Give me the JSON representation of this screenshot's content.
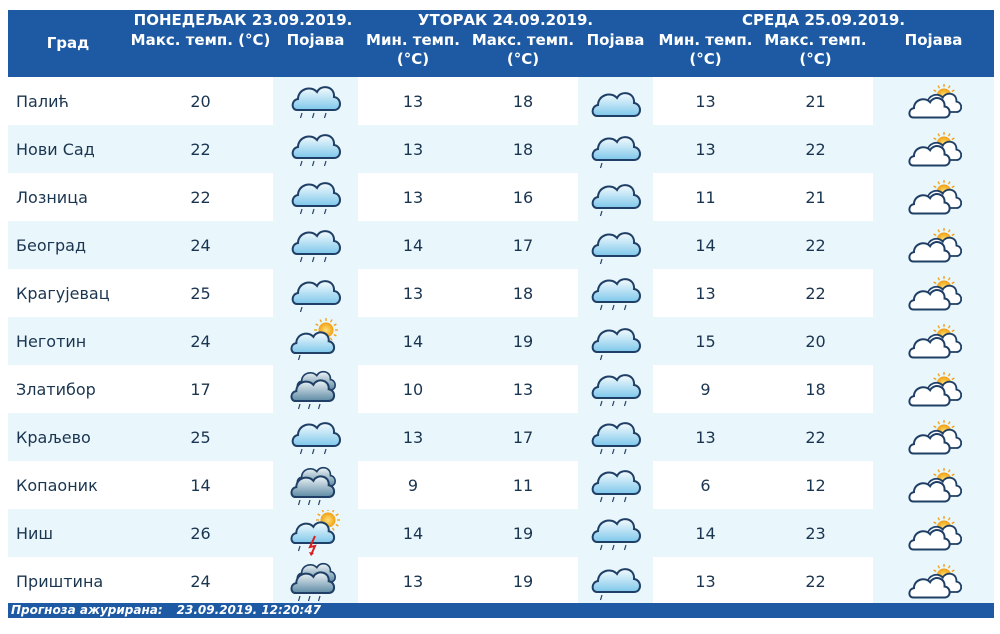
{
  "header": {
    "city_label": "Град",
    "days": [
      {
        "title": "ПОНЕДЕЉАК  23.09.2019.",
        "max_label": "Макс. темп. (°C)",
        "phen_label": "Појава"
      },
      {
        "title": "УТОРАК  24.09.2019.",
        "min_label": "Мин. темп. (°C)",
        "max_label": "Макс. темп. (°C)",
        "phen_label": "Појава"
      },
      {
        "title": "СРЕДА  25.09.2019.",
        "min_label": "Мин. темп. (°C)",
        "max_label": "Макс. темп. (°C)",
        "phen_label": "Појава"
      }
    ]
  },
  "rows": [
    {
      "city": "Палић",
      "d1": {
        "max": "20",
        "icon": "rain-cloud-icon"
      },
      "d2": {
        "min": "13",
        "max": "18",
        "icon": "cloud-icon"
      },
      "d3": {
        "min": "13",
        "max": "21",
        "icon": "partly-cloudy-sun-icon"
      }
    },
    {
      "city": "Нови Сад",
      "d1": {
        "max": "22",
        "icon": "rain-cloud-icon"
      },
      "d2": {
        "min": "13",
        "max": "18",
        "icon": "cloud-light-rain-icon"
      },
      "d3": {
        "min": "13",
        "max": "22",
        "icon": "partly-cloudy-sun-icon"
      }
    },
    {
      "city": "Лозница",
      "d1": {
        "max": "22",
        "icon": "rain-cloud-icon"
      },
      "d2": {
        "min": "13",
        "max": "16",
        "icon": "cloud-light-rain-icon"
      },
      "d3": {
        "min": "11",
        "max": "21",
        "icon": "partly-cloudy-sun-icon"
      }
    },
    {
      "city": "Београд",
      "d1": {
        "max": "24",
        "icon": "rain-cloud-icon"
      },
      "d2": {
        "min": "14",
        "max": "17",
        "icon": "cloud-light-rain-icon"
      },
      "d3": {
        "min": "14",
        "max": "22",
        "icon": "partly-cloudy-sun-icon"
      }
    },
    {
      "city": "Крагујевац",
      "d1": {
        "max": "25",
        "icon": "cloud-light-rain-icon"
      },
      "d2": {
        "min": "13",
        "max": "18",
        "icon": "rain-cloud-icon"
      },
      "d3": {
        "min": "13",
        "max": "22",
        "icon": "partly-cloudy-sun-icon"
      }
    },
    {
      "city": "Неготин",
      "d1": {
        "max": "24",
        "icon": "sun-cloud-light-rain-icon"
      },
      "d2": {
        "min": "14",
        "max": "19",
        "icon": "cloud-light-rain-icon"
      },
      "d3": {
        "min": "15",
        "max": "20",
        "icon": "partly-cloudy-sun-icon"
      }
    },
    {
      "city": "Златибор",
      "d1": {
        "max": "17",
        "icon": "dark-cloud-rain-icon"
      },
      "d2": {
        "min": "10",
        "max": "13",
        "icon": "rain-cloud-icon"
      },
      "d3": {
        "min": "9",
        "max": "18",
        "icon": "partly-cloudy-sun-icon"
      }
    },
    {
      "city": "Краљево",
      "d1": {
        "max": "25",
        "icon": "rain-cloud-icon"
      },
      "d2": {
        "min": "13",
        "max": "17",
        "icon": "rain-cloud-icon"
      },
      "d3": {
        "min": "13",
        "max": "22",
        "icon": "partly-cloudy-sun-icon"
      }
    },
    {
      "city": "Копаоник",
      "d1": {
        "max": "14",
        "icon": "dark-cloud-rain-icon"
      },
      "d2": {
        "min": "9",
        "max": "11",
        "icon": "rain-cloud-icon"
      },
      "d3": {
        "min": "6",
        "max": "12",
        "icon": "partly-cloudy-sun-icon"
      }
    },
    {
      "city": "Ниш",
      "d1": {
        "max": "26",
        "icon": "thunderstorm-sun-icon"
      },
      "d2": {
        "min": "14",
        "max": "19",
        "icon": "rain-cloud-icon"
      },
      "d3": {
        "min": "14",
        "max": "23",
        "icon": "partly-cloudy-sun-icon"
      }
    },
    {
      "city": "Приштина",
      "d1": {
        "max": "24",
        "icon": "dark-cloud-rain-icon"
      },
      "d2": {
        "min": "13",
        "max": "19",
        "icon": "cloud-light-rain-icon"
      },
      "d3": {
        "min": "13",
        "max": "22",
        "icon": "partly-cloudy-sun-icon"
      }
    }
  ],
  "footer": {
    "label": "Прогноза ажурирана:",
    "timestamp": "23.09.2019. 12:20:47"
  },
  "colors": {
    "header_bg": "#1e5aa3",
    "row_alt": "#e9f6fb",
    "text": "#1a3550"
  }
}
